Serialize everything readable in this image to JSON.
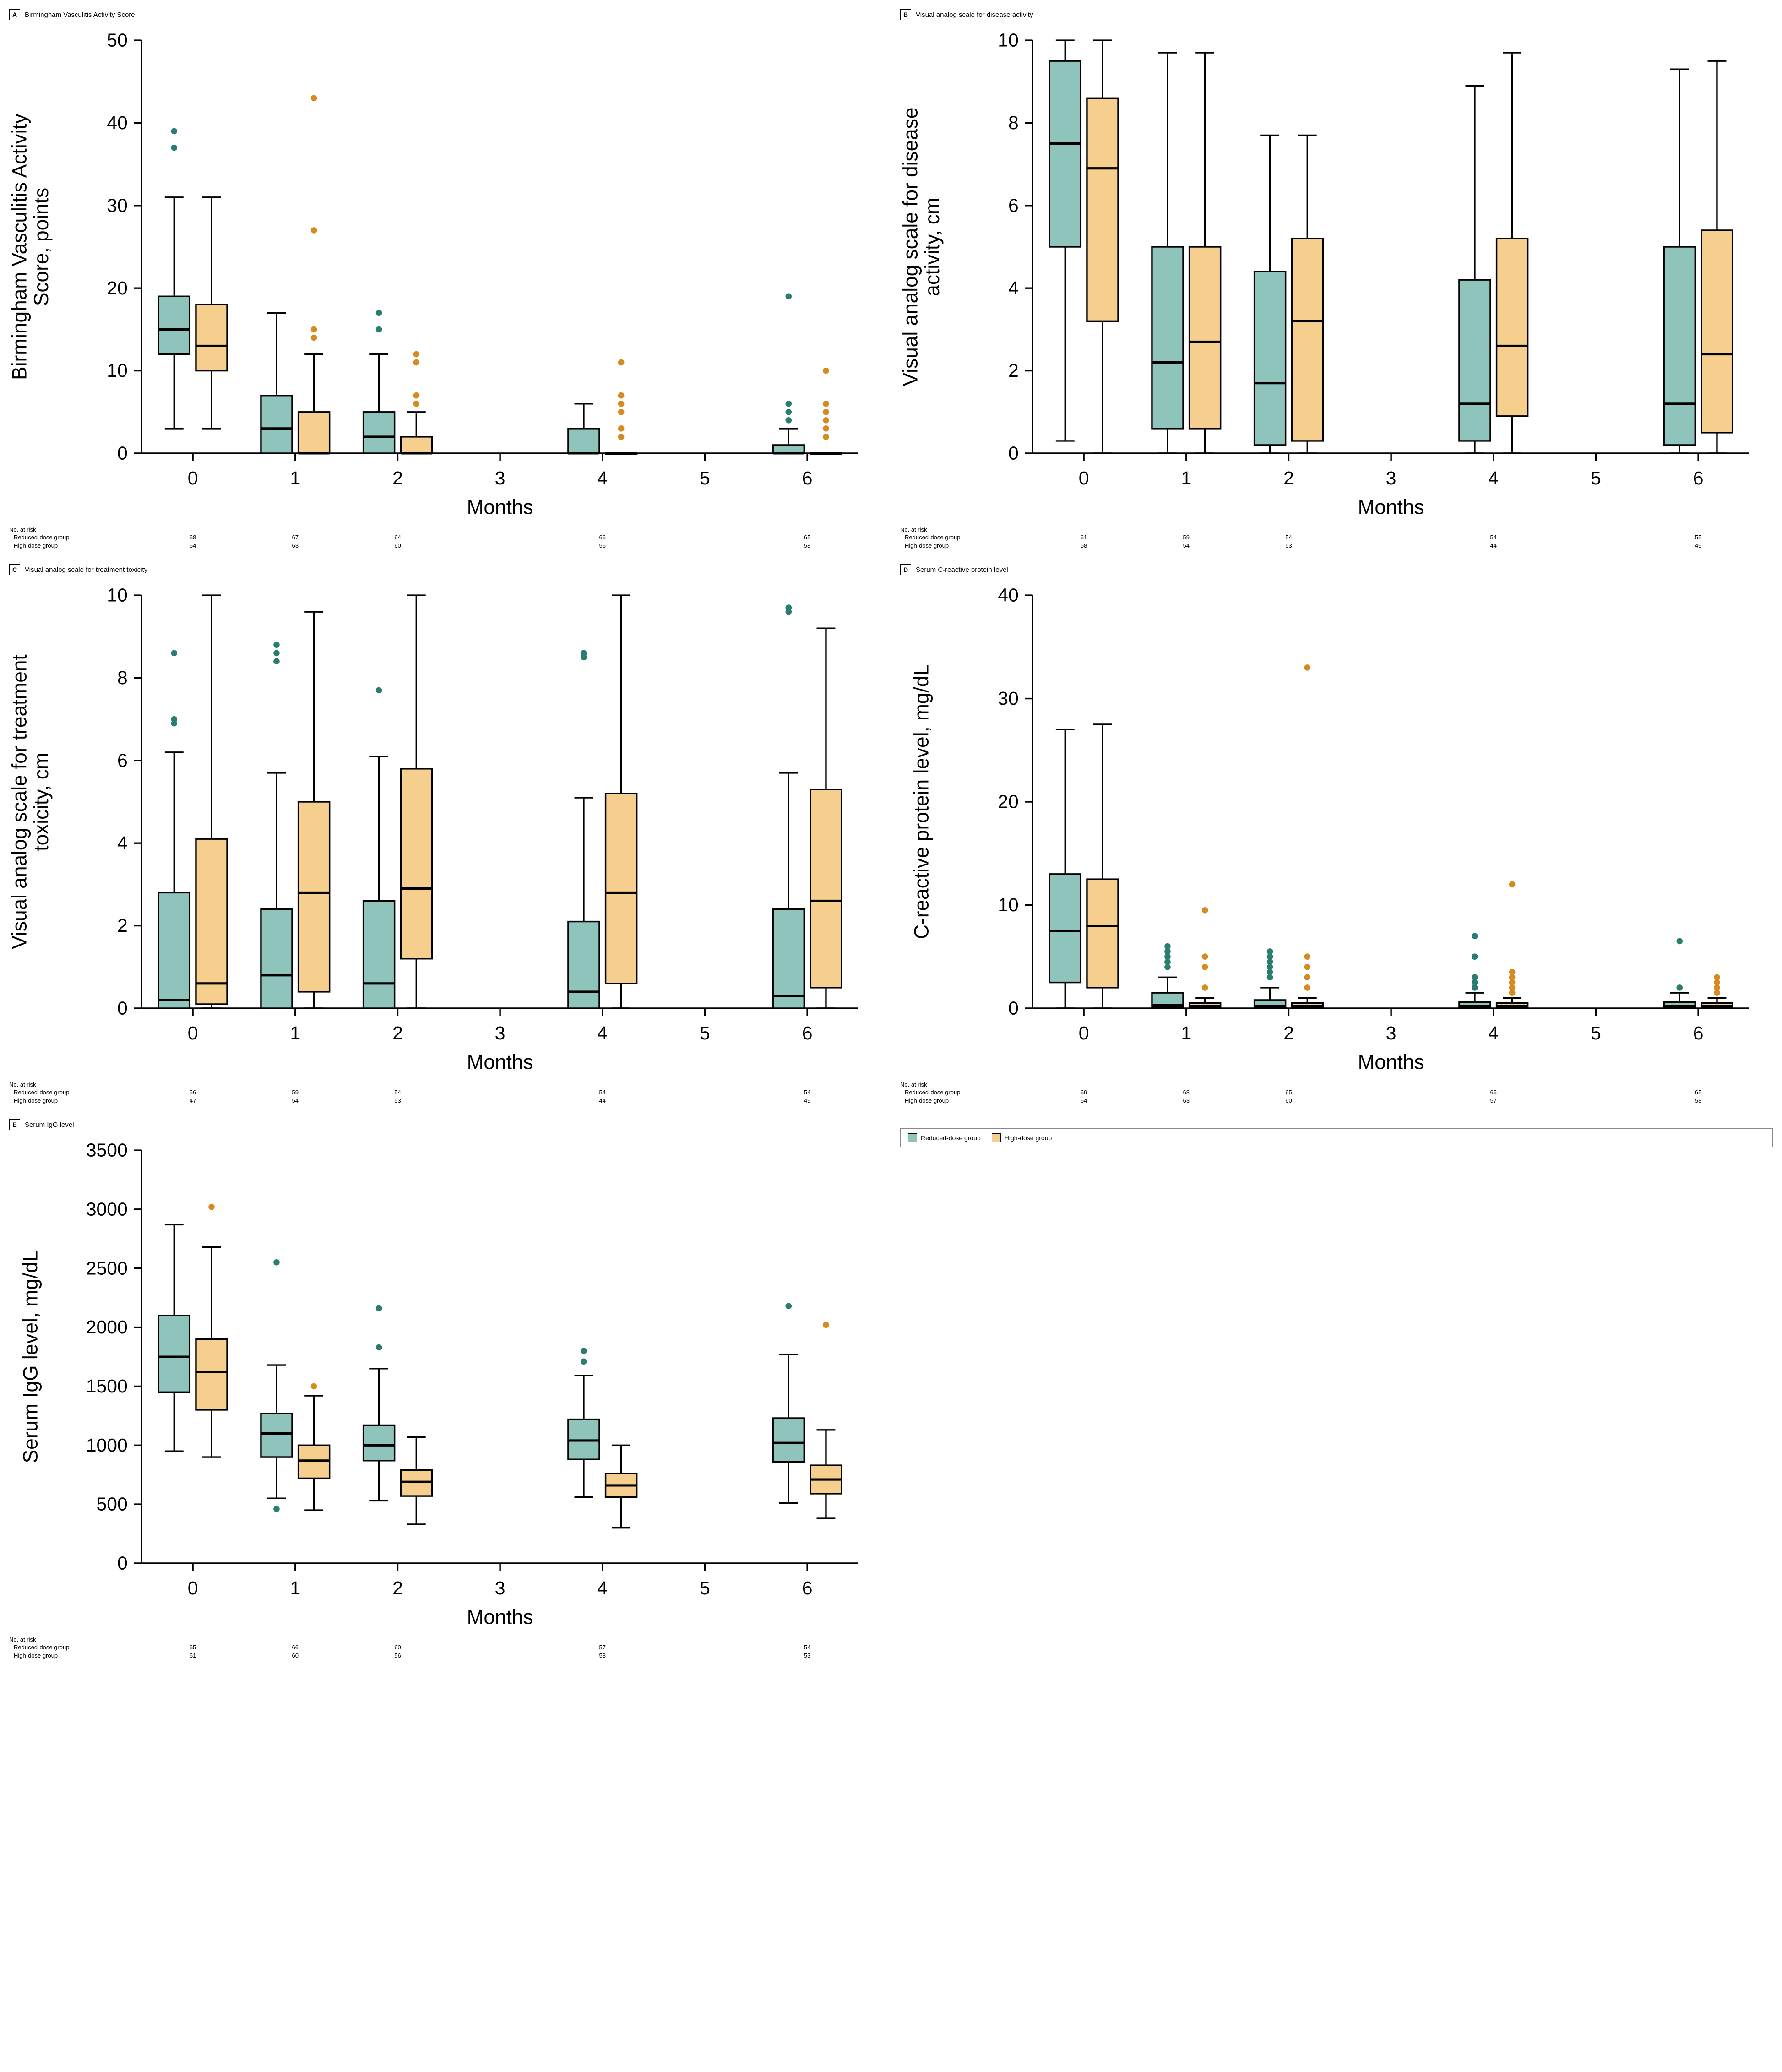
{
  "colors": {
    "reduced": "#8fc4bd",
    "high": "#f6ce8d",
    "reduced_outlier": "#2a7d6f",
    "high_outlier": "#d68a1f",
    "axis": "#000000",
    "tick": "#555555",
    "whisker": "#000000",
    "median": "#000000",
    "background": "#ffffff",
    "legend_border": "#888888"
  },
  "legend": {
    "reduced_label": "Reduced-dose group",
    "high_label": "High-dose group"
  },
  "common": {
    "xlabel": "Months",
    "x_ticks": [
      0,
      1,
      2,
      3,
      4,
      5,
      6
    ],
    "data_months": [
      "0",
      "1",
      "2",
      "4",
      "6"
    ],
    "risk_header": "No. at risk",
    "risk_row1_label": "Reduced-dose group",
    "risk_row2_label": "High-dose group"
  },
  "panels": [
    {
      "letter": "A",
      "title": "Birmingham Vasculitis Activity Score",
      "ylabel": "Birmingham Vasculitis Activity\nScore, points",
      "ylim": [
        0,
        50
      ],
      "ytick_step": 10,
      "series": {
        "reduced": [
          {
            "x": 0,
            "q1": 12,
            "med": 15,
            "q3": 19,
            "lo": 3,
            "hi": 31,
            "out": [
              37,
              39
            ]
          },
          {
            "x": 1,
            "q1": 0,
            "med": 3,
            "q3": 7,
            "lo": 0,
            "hi": 17,
            "out": []
          },
          {
            "x": 2,
            "q1": 0,
            "med": 2,
            "q3": 5,
            "lo": 0,
            "hi": 12,
            "out": [
              15,
              17
            ]
          },
          {
            "x": 4,
            "q1": 0,
            "med": 0,
            "q3": 3,
            "lo": 0,
            "hi": 6,
            "out": []
          },
          {
            "x": 6,
            "q1": 0,
            "med": 0,
            "q3": 1,
            "lo": 0,
            "hi": 3,
            "out": [
              4,
              5,
              6,
              19
            ]
          }
        ],
        "high": [
          {
            "x": 0,
            "q1": 10,
            "med": 13,
            "q3": 18,
            "lo": 3,
            "hi": 31,
            "out": []
          },
          {
            "x": 1,
            "q1": 0,
            "med": 0,
            "q3": 5,
            "lo": 0,
            "hi": 12,
            "out": [
              14,
              15,
              27,
              43
            ]
          },
          {
            "x": 2,
            "q1": 0,
            "med": 0,
            "q3": 2,
            "lo": 0,
            "hi": 5,
            "out": [
              6,
              7,
              11,
              12
            ]
          },
          {
            "x": 4,
            "q1": 0,
            "med": 0,
            "q3": 0,
            "lo": 0,
            "hi": 0,
            "out": [
              2,
              3,
              5,
              6,
              7,
              11
            ]
          },
          {
            "x": 6,
            "q1": 0,
            "med": 0,
            "q3": 0,
            "lo": 0,
            "hi": 0,
            "out": [
              2,
              3,
              4,
              5,
              6,
              10
            ]
          }
        ]
      },
      "risk": {
        "reduced": [
          68,
          67,
          64,
          66,
          65
        ],
        "high": [
          64,
          63,
          60,
          56,
          58
        ]
      }
    },
    {
      "letter": "B",
      "title": "Visual analog scale for disease activity",
      "ylabel": "Visual analog scale for disease\nactivity, cm",
      "ylim": [
        0,
        10
      ],
      "ytick_step": 2,
      "series": {
        "reduced": [
          {
            "x": 0,
            "q1": 5.0,
            "med": 7.5,
            "q3": 9.5,
            "lo": 0.3,
            "hi": 10,
            "out": []
          },
          {
            "x": 1,
            "q1": 0.6,
            "med": 2.2,
            "q3": 5.0,
            "lo": 0,
            "hi": 9.7,
            "out": []
          },
          {
            "x": 2,
            "q1": 0.2,
            "med": 1.7,
            "q3": 4.4,
            "lo": 0,
            "hi": 7.7,
            "out": []
          },
          {
            "x": 4,
            "q1": 0.3,
            "med": 1.2,
            "q3": 4.2,
            "lo": 0,
            "hi": 8.9,
            "out": []
          },
          {
            "x": 6,
            "q1": 0.2,
            "med": 1.2,
            "q3": 5.0,
            "lo": 0,
            "hi": 9.3,
            "out": []
          }
        ],
        "high": [
          {
            "x": 0,
            "q1": 3.2,
            "med": 6.9,
            "q3": 8.6,
            "lo": 0,
            "hi": 10,
            "out": []
          },
          {
            "x": 1,
            "q1": 0.6,
            "med": 2.7,
            "q3": 5.0,
            "lo": 0,
            "hi": 9.7,
            "out": []
          },
          {
            "x": 2,
            "q1": 0.3,
            "med": 3.2,
            "q3": 5.2,
            "lo": 0,
            "hi": 7.7,
            "out": []
          },
          {
            "x": 4,
            "q1": 0.9,
            "med": 2.6,
            "q3": 5.2,
            "lo": 0,
            "hi": 9.7,
            "out": []
          },
          {
            "x": 6,
            "q1": 0.5,
            "med": 2.4,
            "q3": 5.4,
            "lo": 0,
            "hi": 9.5,
            "out": []
          }
        ]
      },
      "risk": {
        "reduced": [
          61,
          59,
          54,
          54,
          55
        ],
        "high": [
          58,
          54,
          53,
          44,
          49
        ]
      }
    },
    {
      "letter": "C",
      "title": "Visual analog scale for treatment toxicity",
      "ylabel": "Visual analog scale for treatment\ntoxicity, cm",
      "ylim": [
        0,
        10
      ],
      "ytick_step": 2,
      "series": {
        "reduced": [
          {
            "x": 0,
            "q1": 0,
            "med": 0.2,
            "q3": 2.8,
            "lo": 0,
            "hi": 6.2,
            "out": [
              6.9,
              7.0,
              8.6
            ]
          },
          {
            "x": 1,
            "q1": 0,
            "med": 0.8,
            "q3": 2.4,
            "lo": 0,
            "hi": 5.7,
            "out": [
              8.4,
              8.6,
              8.8
            ]
          },
          {
            "x": 2,
            "q1": 0,
            "med": 0.6,
            "q3": 2.6,
            "lo": 0,
            "hi": 6.1,
            "out": [
              7.7
            ]
          },
          {
            "x": 4,
            "q1": 0,
            "med": 0.4,
            "q3": 2.1,
            "lo": 0,
            "hi": 5.1,
            "out": [
              8.5,
              8.6
            ]
          },
          {
            "x": 6,
            "q1": 0,
            "med": 0.3,
            "q3": 2.4,
            "lo": 0,
            "hi": 5.7,
            "out": [
              9.6,
              9.7
            ]
          }
        ],
        "high": [
          {
            "x": 0,
            "q1": 0.1,
            "med": 0.6,
            "q3": 4.1,
            "lo": 0,
            "hi": 10,
            "out": []
          },
          {
            "x": 1,
            "q1": 0.4,
            "med": 2.8,
            "q3": 5.0,
            "lo": 0,
            "hi": 9.6,
            "out": []
          },
          {
            "x": 2,
            "q1": 1.2,
            "med": 2.9,
            "q3": 5.8,
            "lo": 0,
            "hi": 10,
            "out": []
          },
          {
            "x": 4,
            "q1": 0.6,
            "med": 2.8,
            "q3": 5.2,
            "lo": 0,
            "hi": 10,
            "out": []
          },
          {
            "x": 6,
            "q1": 0.5,
            "med": 2.6,
            "q3": 5.3,
            "lo": 0,
            "hi": 9.2,
            "out": []
          }
        ]
      },
      "risk": {
        "reduced": [
          56,
          59,
          54,
          54,
          54
        ],
        "high": [
          47,
          54,
          53,
          44,
          49
        ]
      }
    },
    {
      "letter": "D",
      "title": "Serum C-reactive protein level",
      "ylabel": "C-reactive protein level, mg/dL",
      "ylim": [
        0,
        40
      ],
      "ytick_step": 10,
      "series": {
        "reduced": [
          {
            "x": 0,
            "q1": 2.5,
            "med": 7.5,
            "q3": 13,
            "lo": 0,
            "hi": 27,
            "out": []
          },
          {
            "x": 1,
            "q1": 0.1,
            "med": 0.3,
            "q3": 1.5,
            "lo": 0,
            "hi": 3,
            "out": [
              4,
              4.5,
              5,
              5.5,
              6
            ]
          },
          {
            "x": 2,
            "q1": 0.1,
            "med": 0.2,
            "q3": 0.8,
            "lo": 0,
            "hi": 2,
            "out": [
              3,
              3.5,
              4,
              4.5,
              5,
              5.5
            ]
          },
          {
            "x": 4,
            "q1": 0.1,
            "med": 0.2,
            "q3": 0.6,
            "lo": 0,
            "hi": 1.5,
            "out": [
              2,
              2.5,
              3,
              5,
              7
            ]
          },
          {
            "x": 6,
            "q1": 0.1,
            "med": 0.2,
            "q3": 0.6,
            "lo": 0,
            "hi": 1.5,
            "out": [
              2,
              6.5
            ]
          }
        ],
        "high": [
          {
            "x": 0,
            "q1": 2,
            "med": 8,
            "q3": 12.5,
            "lo": 0,
            "hi": 27.5,
            "out": []
          },
          {
            "x": 1,
            "q1": 0.1,
            "med": 0.2,
            "q3": 0.5,
            "lo": 0,
            "hi": 1,
            "out": [
              2,
              4,
              5,
              9.5
            ]
          },
          {
            "x": 2,
            "q1": 0.1,
            "med": 0.2,
            "q3": 0.5,
            "lo": 0,
            "hi": 1,
            "out": [
              2,
              3,
              4,
              5,
              33
            ]
          },
          {
            "x": 4,
            "q1": 0.1,
            "med": 0.2,
            "q3": 0.5,
            "lo": 0,
            "hi": 1,
            "out": [
              1.5,
              2,
              2.5,
              3,
              3.5,
              12
            ]
          },
          {
            "x": 6,
            "q1": 0.1,
            "med": 0.2,
            "q3": 0.5,
            "lo": 0,
            "hi": 1,
            "out": [
              1.5,
              2,
              2.5,
              3
            ]
          }
        ]
      },
      "risk": {
        "reduced": [
          69,
          68,
          65,
          66,
          65
        ],
        "high": [
          64,
          63,
          60,
          57,
          58
        ]
      }
    },
    {
      "letter": "E",
      "title": "Serum IgG level",
      "ylabel": "Serum IgG level, mg/dL",
      "ylim": [
        0,
        3500
      ],
      "ytick_step": 500,
      "series": {
        "reduced": [
          {
            "x": 0,
            "q1": 1450,
            "med": 1750,
            "q3": 2100,
            "lo": 950,
            "hi": 2870,
            "out": []
          },
          {
            "x": 1,
            "q1": 900,
            "med": 1100,
            "q3": 1270,
            "lo": 550,
            "hi": 1680,
            "out": [
              460,
              2550
            ]
          },
          {
            "x": 2,
            "q1": 870,
            "med": 1000,
            "q3": 1170,
            "lo": 530,
            "hi": 1650,
            "out": [
              1830,
              2160
            ]
          },
          {
            "x": 4,
            "q1": 880,
            "med": 1040,
            "q3": 1220,
            "lo": 560,
            "hi": 1590,
            "out": [
              1710,
              1800
            ]
          },
          {
            "x": 6,
            "q1": 860,
            "med": 1020,
            "q3": 1230,
            "lo": 510,
            "hi": 1770,
            "out": [
              2180
            ]
          }
        ],
        "high": [
          {
            "x": 0,
            "q1": 1300,
            "med": 1620,
            "q3": 1900,
            "lo": 900,
            "hi": 2680,
            "out": [
              3020
            ]
          },
          {
            "x": 1,
            "q1": 720,
            "med": 870,
            "q3": 1000,
            "lo": 450,
            "hi": 1420,
            "out": [
              1500
            ]
          },
          {
            "x": 2,
            "q1": 570,
            "med": 690,
            "q3": 790,
            "lo": 330,
            "hi": 1070,
            "out": []
          },
          {
            "x": 4,
            "q1": 560,
            "med": 660,
            "q3": 760,
            "lo": 300,
            "hi": 1000,
            "out": []
          },
          {
            "x": 6,
            "q1": 590,
            "med": 710,
            "q3": 830,
            "lo": 380,
            "hi": 1130,
            "out": [
              2020
            ]
          }
        ]
      },
      "risk": {
        "reduced": [
          65,
          66,
          60,
          57,
          54
        ],
        "high": [
          61,
          60,
          56,
          53,
          53
        ]
      }
    }
  ]
}
